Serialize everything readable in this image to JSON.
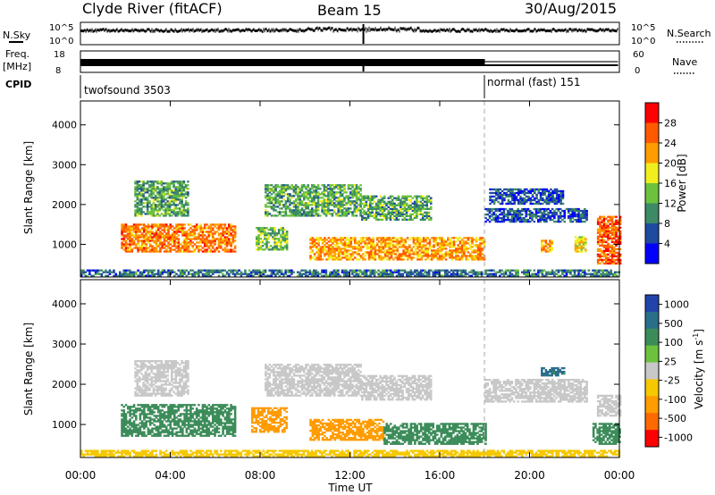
{
  "header": {
    "station": "Clyde River (fitACF)",
    "beam": "Beam 15",
    "date": "30/Aug/2015"
  },
  "top_panels": {
    "nsky_label": "N.Sky",
    "nsky_ticks": [
      "10^5",
      "10^0"
    ],
    "nsearch_label": "N.Search",
    "freq_label_line1": "Freq.",
    "freq_label_line2": "[MHz]",
    "freq_ticks": [
      "18",
      "8"
    ],
    "nave_ticks": [
      "60",
      "0"
    ],
    "nave_label": "Nave",
    "cpid_label": "CPID",
    "cpid_modes": [
      {
        "name": "twofsound 3503",
        "start_hour": 0,
        "end_hour": 18
      },
      {
        "name": "normal (fast) 151",
        "start_hour": 18,
        "end_hour": 24
      }
    ]
  },
  "colors": {
    "power_scale": [
      "#0000ff",
      "#1e4aa0",
      "#3c8a66",
      "#6cc23c",
      "#f2ee1e",
      "#ff9c00",
      "#ff5a00",
      "#ff0000"
    ],
    "velocity_scale": [
      "#2244aa",
      "#2a6e8a",
      "#3c8c5a",
      "#6cc23c",
      "#c8c8c8",
      "#f5c800",
      "#ff9c00",
      "#ff6a00",
      "#ff0000"
    ],
    "ground_scatter": "#9a9a9a"
  },
  "chart_data": [
    {
      "type": "heatmap",
      "title": "Power",
      "xlabel": "Time UT",
      "ylabel": "Slant Range [km]",
      "x_ticks": [
        "00:00",
        "04:00",
        "08:00",
        "12:00",
        "16:00",
        "20:00",
        "00:00"
      ],
      "xlim_hours": [
        0,
        24
      ],
      "y_ticks": [
        1000,
        2000,
        3000,
        4000
      ],
      "ylim_km": [
        180,
        4600
      ],
      "colorbar_label": "Power [dB]",
      "colorbar_ticks": [
        4,
        8,
        12,
        16,
        20,
        24,
        28
      ],
      "regions": [
        {
          "t0": 1.8,
          "t1": 6.9,
          "r0": 800,
          "r1": 1500,
          "level": 24
        },
        {
          "t0": 2.4,
          "t1": 4.8,
          "r0": 1700,
          "r1": 2600,
          "level": 12
        },
        {
          "t0": 7.8,
          "t1": 9.2,
          "r0": 850,
          "r1": 1400,
          "level": 14
        },
        {
          "t0": 8.2,
          "t1": 12.5,
          "r0": 1700,
          "r1": 2500,
          "level": 12
        },
        {
          "t0": 10.2,
          "t1": 18.0,
          "r0": 600,
          "r1": 1150,
          "level": 22
        },
        {
          "t0": 12.5,
          "t1": 15.6,
          "r0": 1600,
          "r1": 2200,
          "level": 12
        },
        {
          "t0": 18.0,
          "t1": 22.5,
          "r0": 1550,
          "r1": 1900,
          "level": 6
        },
        {
          "t0": 18.2,
          "t1": 21.5,
          "r0": 2000,
          "r1": 2400,
          "level": 6
        },
        {
          "t0": 20.5,
          "t1": 21.0,
          "r0": 800,
          "r1": 1100,
          "level": 22
        },
        {
          "t0": 22.0,
          "t1": 22.5,
          "r0": 800,
          "r1": 1200,
          "level": 20
        },
        {
          "t0": 23.0,
          "t1": 24.0,
          "r0": 500,
          "r1": 1700,
          "level": 26
        },
        {
          "t0": 0.0,
          "t1": 24.0,
          "r0": 190,
          "r1": 330,
          "level": 8
        }
      ]
    },
    {
      "type": "heatmap",
      "title": "Velocity",
      "xlabel": "Time UT",
      "ylabel": "Slant Range [km]",
      "x_ticks": [
        "00:00",
        "04:00",
        "08:00",
        "12:00",
        "16:00",
        "20:00",
        "00:00"
      ],
      "xlim_hours": [
        0,
        24
      ],
      "y_ticks": [
        1000,
        2000,
        3000,
        4000
      ],
      "ylim_km": [
        180,
        4600
      ],
      "colorbar_label": "Velocity [m s",
      "colorbar_label_superscript": "-1",
      "colorbar_label_end": "]",
      "colorbar_ticks": [
        "1000",
        "500",
        "100",
        "25",
        "-25",
        "-100",
        "-500",
        "-1000"
      ],
      "regions": [
        {
          "t0": 1.8,
          "t1": 6.9,
          "r0": 700,
          "r1": 1500,
          "level": 300
        },
        {
          "t0": 2.4,
          "t1": 4.8,
          "r0": 1700,
          "r1": 2600,
          "level": 0
        },
        {
          "t0": 7.6,
          "t1": 9.2,
          "r0": 800,
          "r1": 1400,
          "level": -200
        },
        {
          "t0": 8.2,
          "t1": 12.5,
          "r0": 1700,
          "r1": 2500,
          "level": 0
        },
        {
          "t0": 10.2,
          "t1": 13.5,
          "r0": 600,
          "r1": 1100,
          "level": -200
        },
        {
          "t0": 13.5,
          "t1": 18.0,
          "r0": 500,
          "r1": 1000,
          "level": 200
        },
        {
          "t0": 12.5,
          "t1": 15.6,
          "r0": 1600,
          "r1": 2200,
          "level": 0
        },
        {
          "t0": 18.0,
          "t1": 22.5,
          "r0": 1550,
          "r1": 2100,
          "level": 0
        },
        {
          "t0": 20.5,
          "t1": 21.5,
          "r0": 2200,
          "r1": 2400,
          "level": 800
        },
        {
          "t0": 22.8,
          "t1": 24.0,
          "r0": 500,
          "r1": 1000,
          "level": 300
        },
        {
          "t0": 23.0,
          "t1": 24.0,
          "r0": 1200,
          "r1": 1700,
          "level": 0
        },
        {
          "t0": 0.0,
          "t1": 24.0,
          "r0": 190,
          "r1": 330,
          "level": -60
        }
      ]
    }
  ]
}
